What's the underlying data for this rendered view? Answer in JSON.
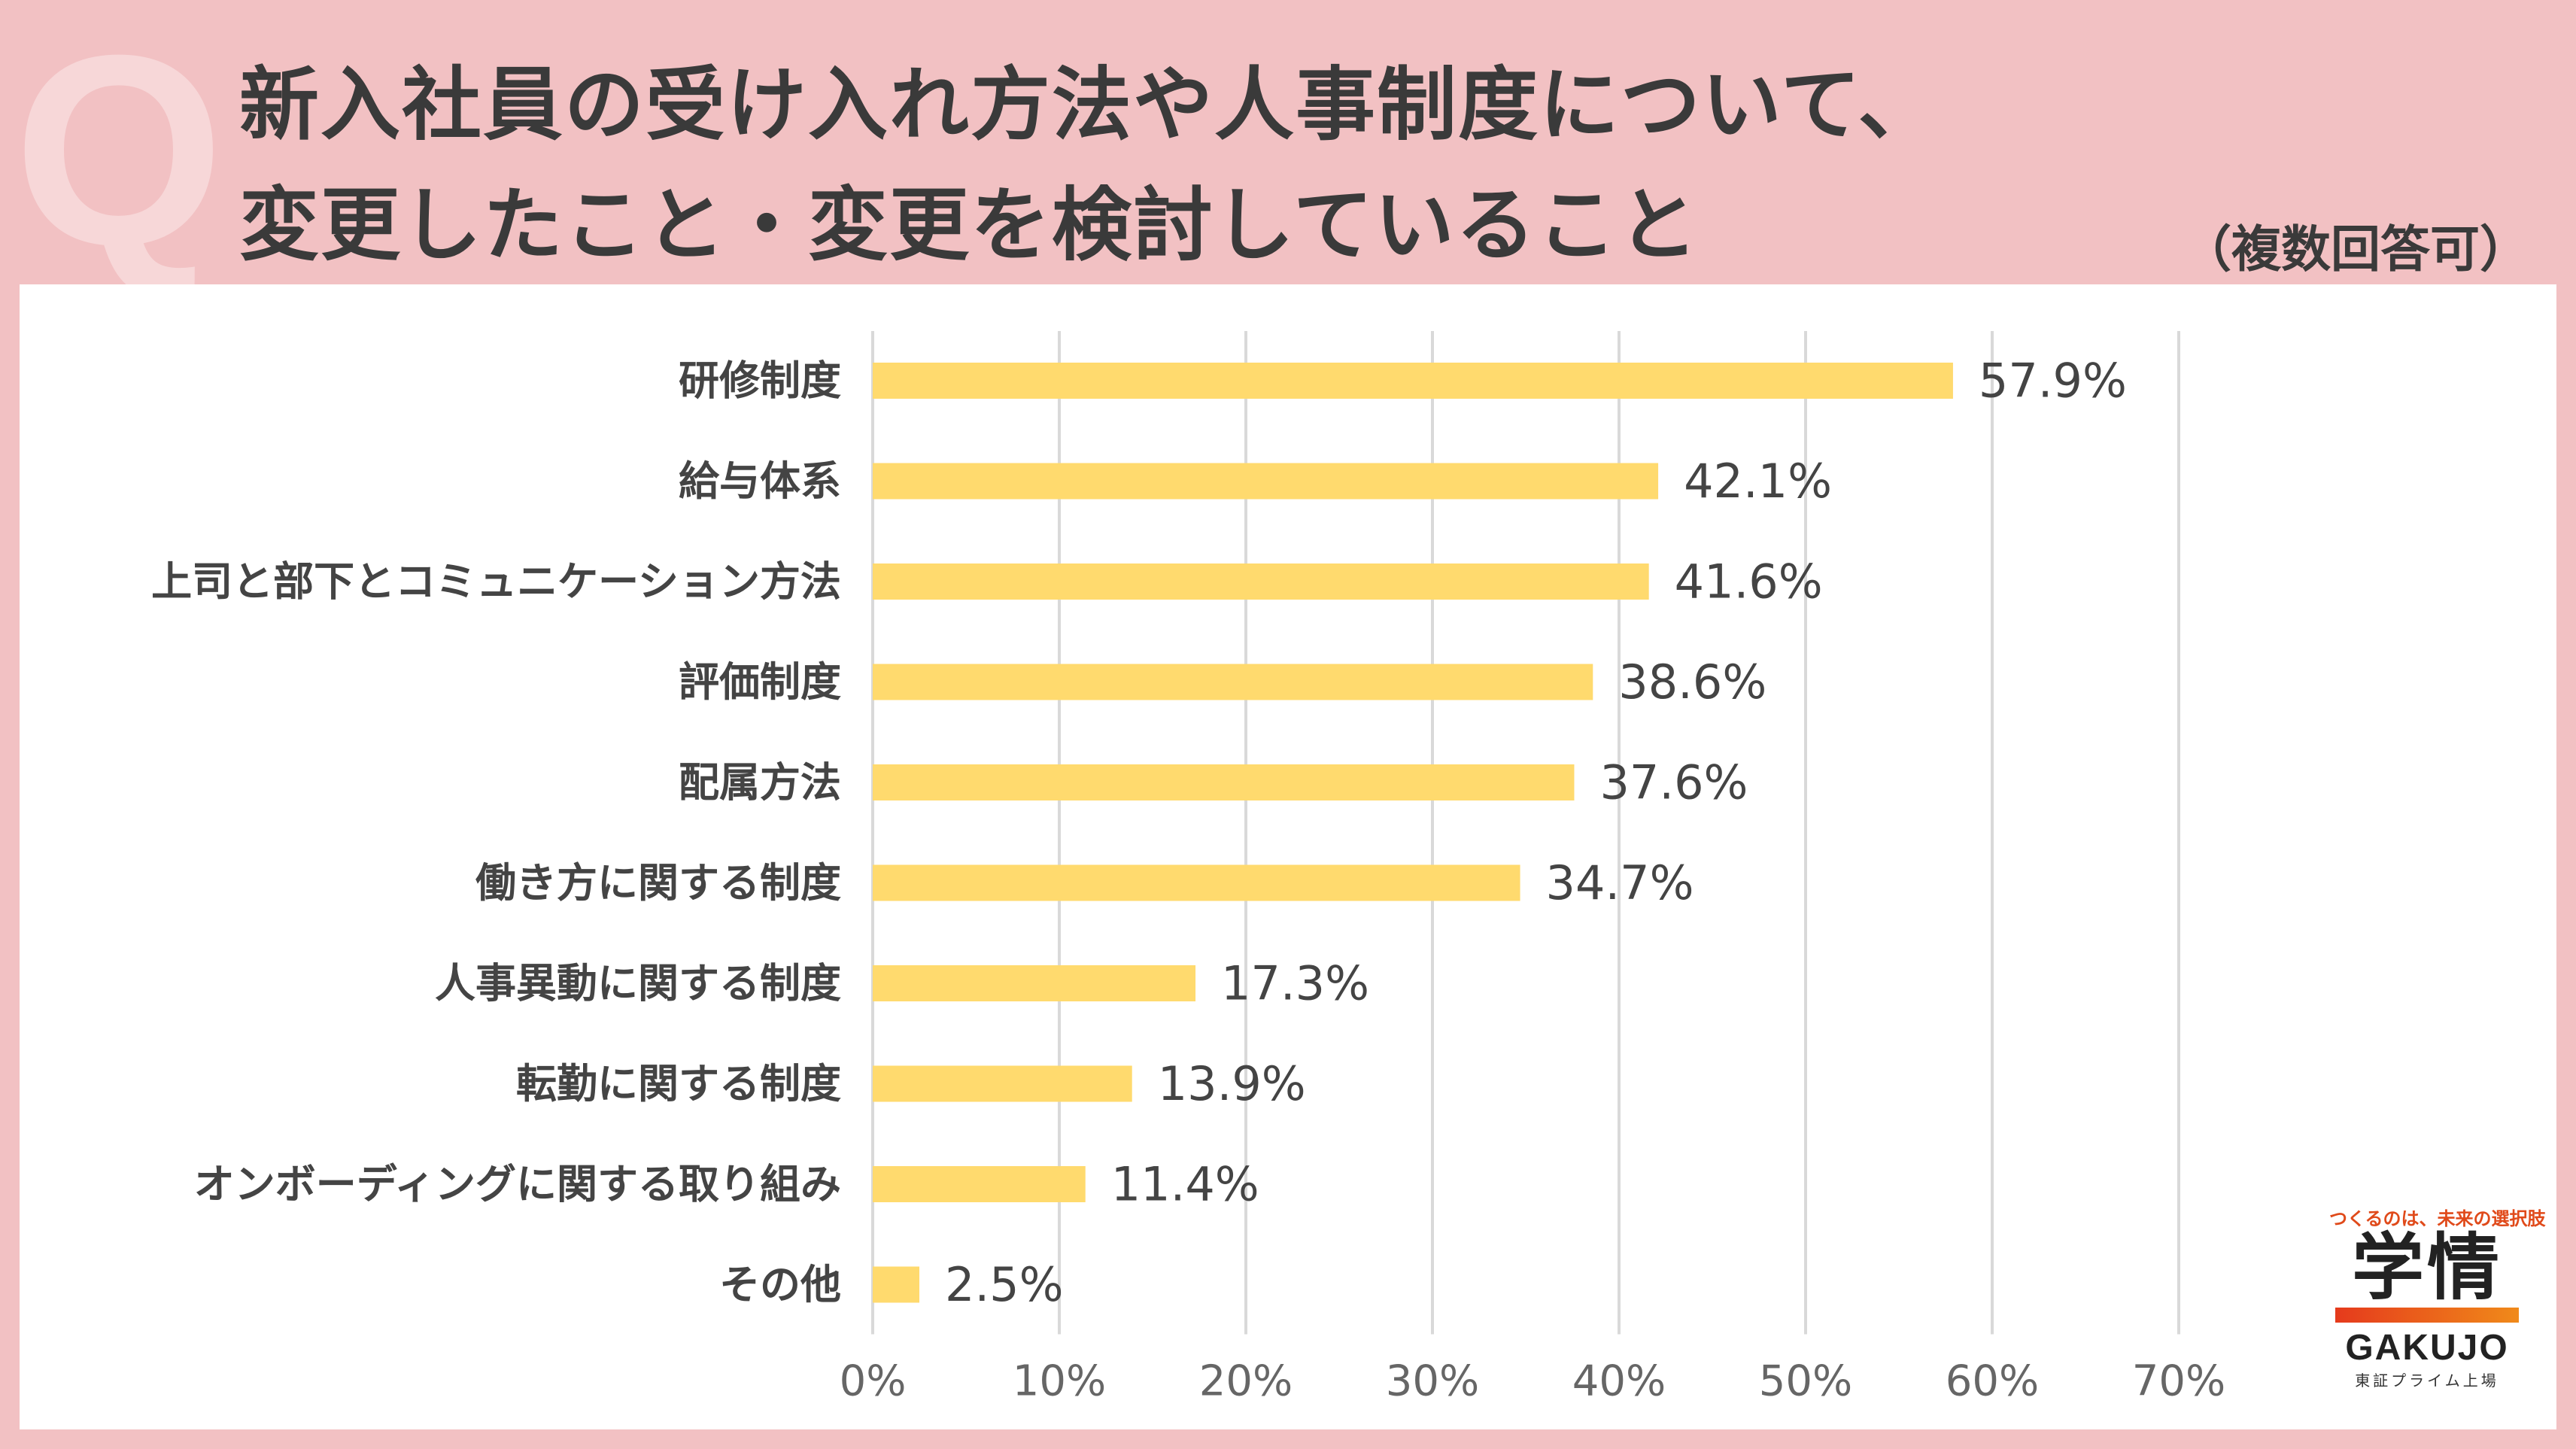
{
  "header": {
    "q_mark": "Q",
    "title_line1": "新入社員の受け入れ方法や人事制度について、",
    "title_line2": "変更したこと・変更を検討していること",
    "note": "（複数回答可）"
  },
  "chart_data": {
    "type": "bar",
    "orientation": "horizontal",
    "categories": [
      "研修制度",
      "給与体系",
      "上司と部下とコミュニケーション方法",
      "評価制度",
      "配属方法",
      "働き方に関する制度",
      "人事異動に関する制度",
      "転勤に関する制度",
      "オンボーディングに関する取り組み",
      "その他"
    ],
    "values": [
      57.9,
      42.1,
      41.6,
      38.6,
      37.6,
      34.7,
      17.3,
      13.9,
      11.4,
      2.5
    ],
    "value_labels": [
      "57.9%",
      "42.1%",
      "41.6%",
      "38.6%",
      "37.6%",
      "34.7%",
      "17.3%",
      "13.9%",
      "11.4%",
      "2.5%"
    ],
    "xlim": [
      0,
      70
    ],
    "xticks": [
      0,
      10,
      20,
      30,
      40,
      50,
      60,
      70
    ],
    "xtick_labels": [
      "0%",
      "10%",
      "20%",
      "30%",
      "40%",
      "50%",
      "60%",
      "70%"
    ],
    "grid": true,
    "bar_color": "#ffda6e",
    "grid_color": "#d9d9d9",
    "label_color": "#444444"
  },
  "brand": {
    "tagline": "つくるのは、未来の選択肢",
    "kanji": "学情",
    "name": "GAKUJO",
    "listing": "東証プライム上場"
  }
}
